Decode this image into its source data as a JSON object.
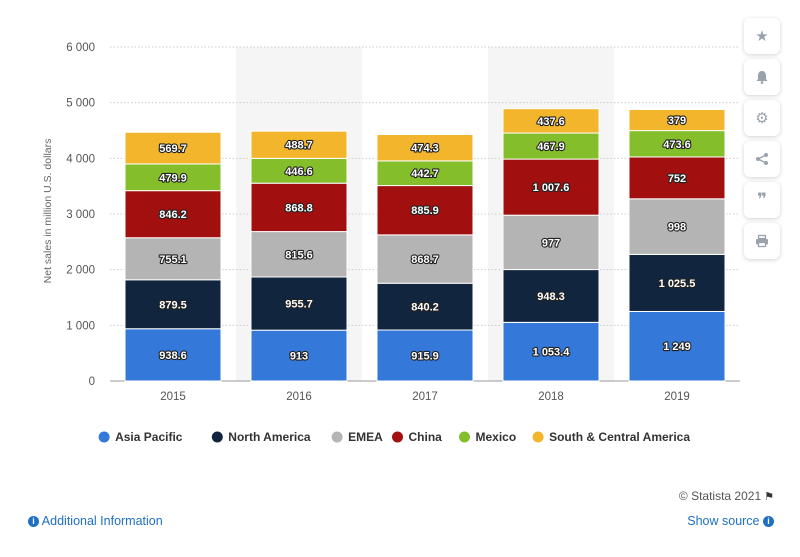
{
  "chart_data": {
    "type": "bar",
    "stacked": true,
    "categories": [
      "2015",
      "2016",
      "2017",
      "2018",
      "2019"
    ],
    "series": [
      {
        "name": "Asia Pacific",
        "color": "#3478d9",
        "values": [
          938.6,
          913,
          915.9,
          1053.4,
          1249
        ],
        "labels": [
          "938.6",
          "913",
          "915.9",
          "1 053.4",
          "1 249"
        ]
      },
      {
        "name": "North America",
        "color": "#11253e",
        "values": [
          879.5,
          955.7,
          840.2,
          948.3,
          1025.5
        ],
        "labels": [
          "879.5",
          "955.7",
          "840.2",
          "948.3",
          "1 025.5"
        ]
      },
      {
        "name": "EMEA",
        "color": "#b4b4b4",
        "values": [
          755.1,
          815.6,
          868.7,
          977,
          998
        ],
        "labels": [
          "755.1",
          "815.6",
          "868.7",
          "977",
          "998"
        ]
      },
      {
        "name": "China",
        "color": "#a10f0f",
        "values": [
          846.2,
          868.8,
          885.9,
          1007.6,
          752
        ],
        "labels": [
          "846.2",
          "868.8",
          "885.9",
          "1 007.6",
          "752"
        ]
      },
      {
        "name": "Mexico",
        "color": "#84bf2b",
        "values": [
          479.9,
          446.6,
          442.7,
          467.9,
          473.6
        ],
        "labels": [
          "479.9",
          "446.6",
          "442.7",
          "467.9",
          "473.6"
        ]
      },
      {
        "name": "South & Central America",
        "color": "#f2b52b",
        "values": [
          569.7,
          488.7,
          474.3,
          437.6,
          379
        ],
        "labels": [
          "569.7",
          "488.7",
          "474.3",
          "437.6",
          "379"
        ]
      }
    ],
    "ylabel": "Net sales in million U.S. dollars",
    "ylim": [
      0,
      6000
    ],
    "yticks": [
      0,
      1000,
      2000,
      3000,
      4000,
      5000,
      6000
    ],
    "ytick_labels": [
      "0",
      "1 000",
      "2 000",
      "3 000",
      "4 000",
      "5 000",
      "6 000"
    ],
    "grid": true,
    "legend_position": "bottom",
    "shaded_columns": [
      "2016",
      "2018"
    ]
  },
  "toolbar": {
    "icons": [
      "star-icon",
      "bell-icon",
      "gear-icon",
      "share-icon",
      "quote-icon",
      "print-icon"
    ]
  },
  "footer": {
    "credit": "© Statista 2021",
    "additional_info": "Additional Information",
    "show_source": "Show source"
  }
}
